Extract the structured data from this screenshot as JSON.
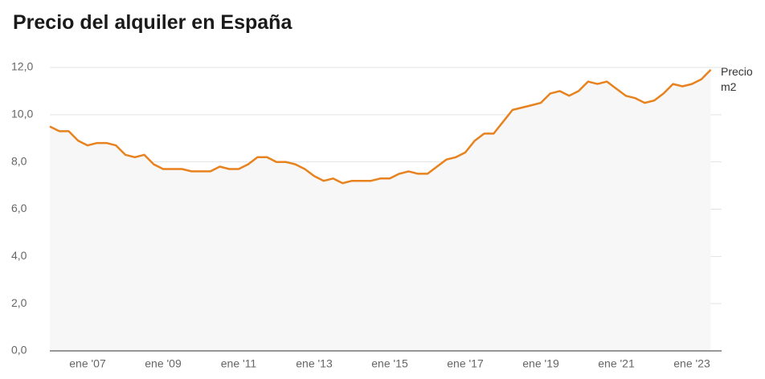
{
  "chart_data": {
    "type": "line",
    "title": "Precio del alquiler en España",
    "categories": [
      null,
      null,
      null,
      null,
      "ene '07",
      null,
      null,
      null,
      null,
      null,
      null,
      null,
      "ene '09",
      null,
      null,
      null,
      null,
      null,
      null,
      null,
      "ene '11",
      null,
      null,
      null,
      null,
      null,
      null,
      null,
      "ene '13",
      null,
      null,
      null,
      null,
      null,
      null,
      null,
      "ene '15",
      null,
      null,
      null,
      null,
      null,
      null,
      null,
      "ene '17",
      null,
      null,
      null,
      null,
      null,
      null,
      null,
      "ene '19",
      null,
      null,
      null,
      null,
      null,
      null,
      null,
      "ene '21",
      null,
      null,
      null,
      null,
      null,
      null,
      null,
      "ene '23",
      null,
      null
    ],
    "series": [
      {
        "name": "Precio m2",
        "color": "#e8821e",
        "values": [
          9.5,
          9.3,
          9.3,
          8.9,
          8.7,
          8.8,
          8.8,
          8.7,
          8.3,
          8.2,
          8.3,
          7.9,
          7.7,
          7.7,
          7.7,
          7.6,
          7.6,
          7.6,
          7.8,
          7.7,
          7.7,
          7.9,
          8.2,
          8.2,
          8.0,
          8.0,
          7.9,
          7.7,
          7.4,
          7.2,
          7.3,
          7.1,
          7.2,
          7.2,
          7.2,
          7.3,
          7.3,
          7.5,
          7.6,
          7.5,
          7.5,
          7.8,
          8.1,
          8.2,
          8.4,
          8.9,
          9.2,
          9.2,
          9.7,
          10.2,
          10.3,
          10.4,
          10.5,
          10.9,
          11.0,
          10.8,
          11.0,
          11.4,
          11.3,
          11.4,
          11.1,
          10.8,
          10.7,
          10.5,
          10.6,
          10.9,
          11.3,
          11.2,
          11.3,
          11.5,
          11.9
        ]
      }
    ],
    "ylim": [
      0,
      12
    ],
    "yticks": [
      {
        "value": 0,
        "label": "0,0"
      },
      {
        "value": 2,
        "label": "2,0"
      },
      {
        "value": 4,
        "label": "4,0"
      },
      {
        "value": 6,
        "label": "6,0"
      },
      {
        "value": 8,
        "label": "8,0"
      },
      {
        "value": 10,
        "label": "10,0"
      },
      {
        "value": 12,
        "label": "12,0"
      }
    ],
    "grid": true
  }
}
